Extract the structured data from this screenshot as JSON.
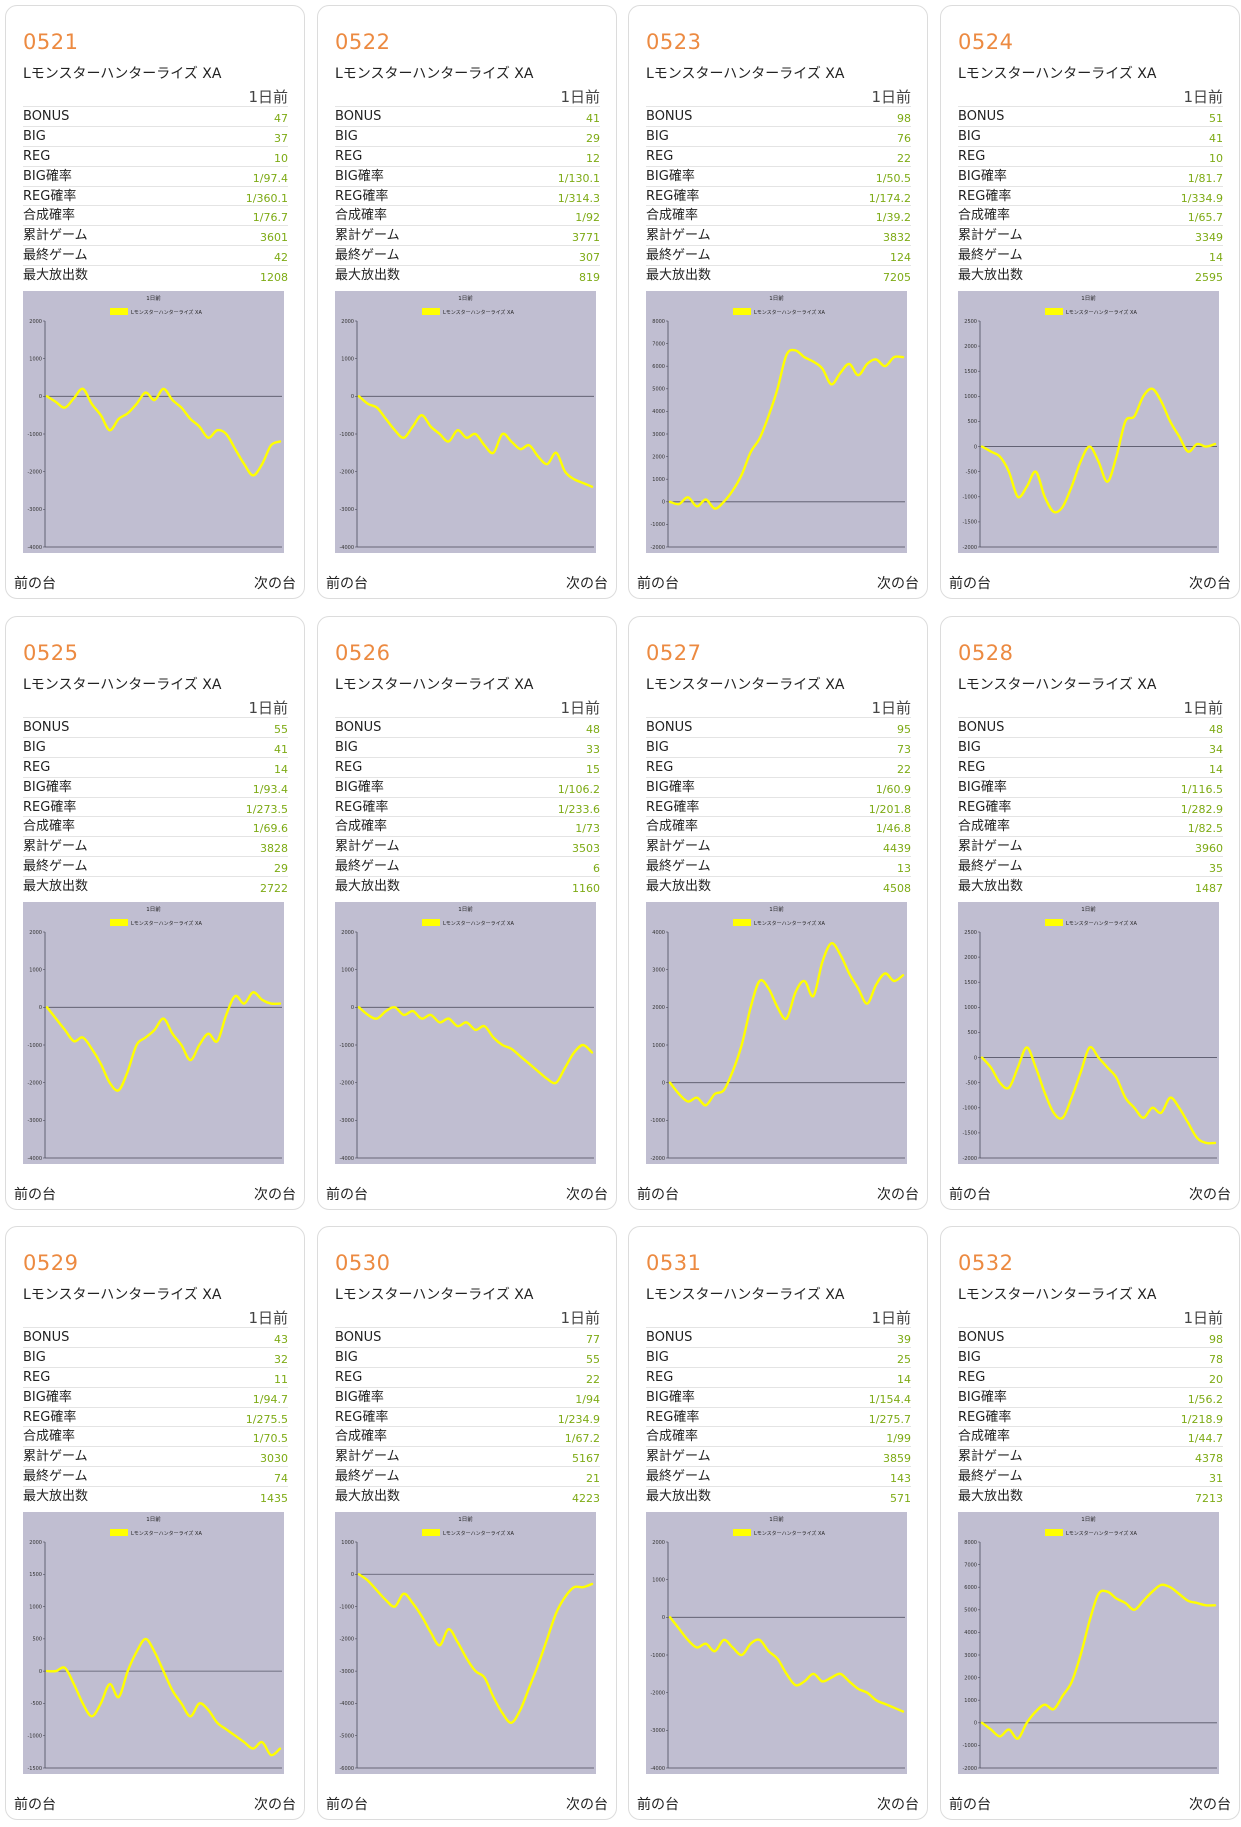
{
  "chart_colors": {
    "background": "#c0bed1",
    "series": "#ffff00",
    "axis": "#4a4a5a",
    "zero_line": "#555566"
  },
  "labels": {
    "day": "1日前",
    "prev": "前の台",
    "next": "次の台",
    "stats": [
      "BONUS",
      "BIG",
      "REG",
      "BIG確率",
      "REG確率",
      "合成確率",
      "累計ゲーム",
      "最終ゲーム",
      "最大放出数"
    ]
  },
  "machines": [
    {
      "number": "0521",
      "model": "Lモンスターハンターライズ XA",
      "stats": [
        "47",
        "37",
        "10",
        "1/97.4",
        "1/360.1",
        "1/76.7",
        "3601",
        "42",
        "1208"
      ],
      "chart_data": {
        "type": "line",
        "title": "1日前",
        "series": [
          {
            "name": "Lモンスターハンターライズ XA"
          }
        ],
        "ylim": [
          -4000,
          2000
        ],
        "yticks": [
          2000,
          1000,
          0,
          -1000,
          -2000,
          -3000,
          -4000
        ],
        "values": [
          0,
          -150,
          -300,
          -50,
          200,
          -200,
          -500,
          -900,
          -600,
          -450,
          -200,
          100,
          -100,
          200,
          -100,
          -300,
          -600,
          -800,
          -1100,
          -900,
          -1000,
          -1400,
          -1800,
          -2100,
          -1800,
          -1300,
          -1200
        ]
      }
    },
    {
      "number": "0522",
      "model": "Lモンスターハンターライズ XA",
      "stats": [
        "41",
        "29",
        "12",
        "1/130.1",
        "1/314.3",
        "1/92",
        "3771",
        "307",
        "819"
      ],
      "chart_data": {
        "type": "line",
        "title": "1日前",
        "series": [
          {
            "name": "Lモンスターハンターライズ XA"
          }
        ],
        "ylim": [
          -4000,
          2000
        ],
        "yticks": [
          2000,
          1000,
          0,
          -1000,
          -2000,
          -3000,
          -4000
        ],
        "values": [
          0,
          -200,
          -300,
          -600,
          -900,
          -1100,
          -800,
          -500,
          -800,
          -1000,
          -1200,
          -900,
          -1100,
          -1000,
          -1300,
          -1500,
          -1000,
          -1200,
          -1400,
          -1300,
          -1600,
          -1800,
          -1500,
          -2000,
          -2200,
          -2300,
          -2400
        ]
      }
    },
    {
      "number": "0523",
      "model": "Lモンスターハンターライズ XA",
      "stats": [
        "98",
        "76",
        "22",
        "1/50.5",
        "1/174.2",
        "1/39.2",
        "3832",
        "124",
        "7205"
      ],
      "chart_data": {
        "type": "line",
        "title": "1日前",
        "series": [
          {
            "name": "Lモンスターハンターライズ XA"
          }
        ],
        "ylim": [
          -2000,
          8000
        ],
        "yticks": [
          8000,
          7000,
          6000,
          5000,
          4000,
          3000,
          2000,
          1000,
          0,
          -1000,
          -2000
        ],
        "values": [
          0,
          -100,
          200,
          -200,
          100,
          -300,
          0,
          500,
          1200,
          2200,
          2800,
          3800,
          5000,
          6500,
          6700,
          6400,
          6200,
          5900,
          5200,
          5700,
          6100,
          5600,
          6100,
          6300,
          6000,
          6400,
          6400
        ]
      }
    },
    {
      "number": "0524",
      "model": "Lモンスターハンターライズ XA",
      "stats": [
        "51",
        "41",
        "10",
        "1/81.7",
        "1/334.9",
        "1/65.7",
        "3349",
        "14",
        "2595"
      ],
      "chart_data": {
        "type": "line",
        "title": "1日前",
        "series": [
          {
            "name": "Lモンスターハンターライズ XA"
          }
        ],
        "ylim": [
          -2000,
          2500
        ],
        "yticks": [
          2500,
          2000,
          1500,
          1000,
          500,
          0,
          -500,
          -1000,
          -1500,
          -2000
        ],
        "values": [
          0,
          -100,
          -200,
          -500,
          -1000,
          -800,
          -500,
          -1000,
          -1300,
          -1200,
          -800,
          -300,
          0,
          -300,
          -700,
          -200,
          500,
          600,
          1000,
          1150,
          900,
          500,
          200,
          -100,
          50,
          0,
          50
        ]
      }
    },
    {
      "number": "0525",
      "model": "Lモンスターハンターライズ XA",
      "stats": [
        "55",
        "41",
        "14",
        "1/93.4",
        "1/273.5",
        "1/69.6",
        "3828",
        "29",
        "2722"
      ],
      "chart_data": {
        "type": "line",
        "title": "1日前",
        "series": [
          {
            "name": "Lモンスターハンターライズ XA"
          }
        ],
        "ylim": [
          -4000,
          2000
        ],
        "yticks": [
          2000,
          1000,
          0,
          -1000,
          -2000,
          -3000,
          -4000
        ],
        "values": [
          0,
          -300,
          -600,
          -900,
          -800,
          -1100,
          -1500,
          -2000,
          -2200,
          -1700,
          -1000,
          -800,
          -600,
          -300,
          -700,
          -1000,
          -1400,
          -1000,
          -700,
          -900,
          -200,
          300,
          100,
          400,
          200,
          100,
          100
        ]
      }
    },
    {
      "number": "0526",
      "model": "Lモンスターハンターライズ XA",
      "stats": [
        "48",
        "33",
        "15",
        "1/106.2",
        "1/233.6",
        "1/73",
        "3503",
        "6",
        "1160"
      ],
      "chart_data": {
        "type": "line",
        "title": "1日前",
        "series": [
          {
            "name": "Lモンスターハンターライズ XA"
          }
        ],
        "ylim": [
          -4000,
          2000
        ],
        "yticks": [
          2000,
          1000,
          0,
          -1000,
          -2000,
          -3000,
          -4000
        ],
        "values": [
          0,
          -200,
          -300,
          -100,
          0,
          -200,
          -100,
          -300,
          -200,
          -400,
          -300,
          -500,
          -400,
          -600,
          -500,
          -800,
          -1000,
          -1100,
          -1300,
          -1500,
          -1700,
          -1900,
          -2000,
          -1600,
          -1200,
          -1000,
          -1200
        ]
      }
    },
    {
      "number": "0527",
      "model": "Lモンスターハンターライズ XA",
      "stats": [
        "95",
        "73",
        "22",
        "1/60.9",
        "1/201.8",
        "1/46.8",
        "4439",
        "13",
        "4508"
      ],
      "chart_data": {
        "type": "line",
        "title": "1日前",
        "series": [
          {
            "name": "Lモンスターハンターライズ XA"
          }
        ],
        "ylim": [
          -2000,
          4000
        ],
        "yticks": [
          4000,
          3000,
          2000,
          1000,
          0,
          -1000,
          -2000
        ],
        "values": [
          0,
          -300,
          -500,
          -400,
          -600,
          -300,
          -200,
          300,
          1000,
          2000,
          2700,
          2500,
          2000,
          1700,
          2400,
          2700,
          2300,
          3200,
          3700,
          3400,
          2900,
          2500,
          2100,
          2600,
          2900,
          2700,
          2850
        ]
      }
    },
    {
      "number": "0528",
      "model": "Lモンスターハンターライズ XA",
      "stats": [
        "48",
        "34",
        "14",
        "1/116.5",
        "1/282.9",
        "1/82.5",
        "3960",
        "35",
        "1487"
      ],
      "chart_data": {
        "type": "line",
        "title": "1日前",
        "series": [
          {
            "name": "Lモンスターハンターライズ XA"
          }
        ],
        "ylim": [
          -2000,
          2500
        ],
        "yticks": [
          2500,
          2000,
          1500,
          1000,
          500,
          0,
          -500,
          -1000,
          -1500,
          -2000
        ],
        "values": [
          0,
          -200,
          -500,
          -600,
          -200,
          200,
          -200,
          -700,
          -1100,
          -1200,
          -800,
          -300,
          200,
          0,
          -200,
          -400,
          -800,
          -1000,
          -1200,
          -1000,
          -1100,
          -800,
          -1000,
          -1300,
          -1600,
          -1700,
          -1700
        ]
      }
    },
    {
      "number": "0529",
      "model": "Lモンスターハンターライズ XA",
      "stats": [
        "43",
        "32",
        "11",
        "1/94.7",
        "1/275.5",
        "1/70.5",
        "3030",
        "74",
        "1435"
      ],
      "chart_data": {
        "type": "line",
        "title": "1日前",
        "series": [
          {
            "name": "Lモンスターハンターライズ XA"
          }
        ],
        "ylim": [
          -1500,
          2000
        ],
        "yticks": [
          2000,
          1500,
          1000,
          500,
          0,
          -500,
          -1000,
          -1500
        ],
        "values": [
          0,
          0,
          50,
          -200,
          -500,
          -700,
          -500,
          -200,
          -400,
          0,
          300,
          500,
          300,
          0,
          -300,
          -500,
          -700,
          -500,
          -600,
          -800,
          -900,
          -1000,
          -1100,
          -1200,
          -1100,
          -1300,
          -1200
        ]
      }
    },
    {
      "number": "0530",
      "model": "Lモンスターハンターライズ XA",
      "stats": [
        "77",
        "55",
        "22",
        "1/94",
        "1/234.9",
        "1/67.2",
        "5167",
        "21",
        "4223"
      ],
      "chart_data": {
        "type": "line",
        "title": "1日前",
        "series": [
          {
            "name": "Lモンスターハンターライズ XA"
          }
        ],
        "ylim": [
          -6000,
          1000
        ],
        "yticks": [
          1000,
          0,
          -1000,
          -2000,
          -3000,
          -4000,
          -5000,
          -6000
        ],
        "values": [
          0,
          -200,
          -500,
          -800,
          -1000,
          -600,
          -900,
          -1300,
          -1800,
          -2200,
          -1700,
          -2100,
          -2600,
          -3000,
          -3200,
          -3800,
          -4300,
          -4600,
          -4200,
          -3500,
          -2800,
          -2000,
          -1200,
          -700,
          -400,
          -400,
          -300
        ]
      }
    },
    {
      "number": "0531",
      "model": "Lモンスターハンターライズ XA",
      "stats": [
        "39",
        "25",
        "14",
        "1/154.4",
        "1/275.7",
        "1/99",
        "3859",
        "143",
        "571"
      ],
      "chart_data": {
        "type": "line",
        "title": "1日前",
        "series": [
          {
            "name": "Lモンスターハンターライズ XA"
          }
        ],
        "ylim": [
          -4000,
          2000
        ],
        "yticks": [
          2000,
          1000,
          0,
          -1000,
          -2000,
          -3000,
          -4000
        ],
        "values": [
          0,
          -300,
          -600,
          -800,
          -700,
          -900,
          -600,
          -800,
          -1000,
          -700,
          -600,
          -900,
          -1100,
          -1500,
          -1800,
          -1700,
          -1500,
          -1700,
          -1600,
          -1500,
          -1700,
          -1900,
          -2000,
          -2200,
          -2300,
          -2400,
          -2500
        ]
      }
    },
    {
      "number": "0532",
      "model": "Lモンスターハンターライズ XA",
      "stats": [
        "98",
        "78",
        "20",
        "1/56.2",
        "1/218.9",
        "1/44.7",
        "4378",
        "31",
        "7213"
      ],
      "chart_data": {
        "type": "line",
        "title": "1日前",
        "series": [
          {
            "name": "Lモンスターハンターライズ XA"
          }
        ],
        "ylim": [
          -2000,
          8000
        ],
        "yticks": [
          8000,
          7000,
          6000,
          5000,
          4000,
          3000,
          2000,
          1000,
          0,
          -1000,
          -2000
        ],
        "values": [
          0,
          -300,
          -600,
          -300,
          -700,
          0,
          500,
          800,
          600,
          1200,
          1800,
          3000,
          4500,
          5700,
          5800,
          5500,
          5300,
          5000,
          5400,
          5800,
          6100,
          6000,
          5700,
          5400,
          5300,
          5200,
          5200
        ]
      }
    }
  ]
}
